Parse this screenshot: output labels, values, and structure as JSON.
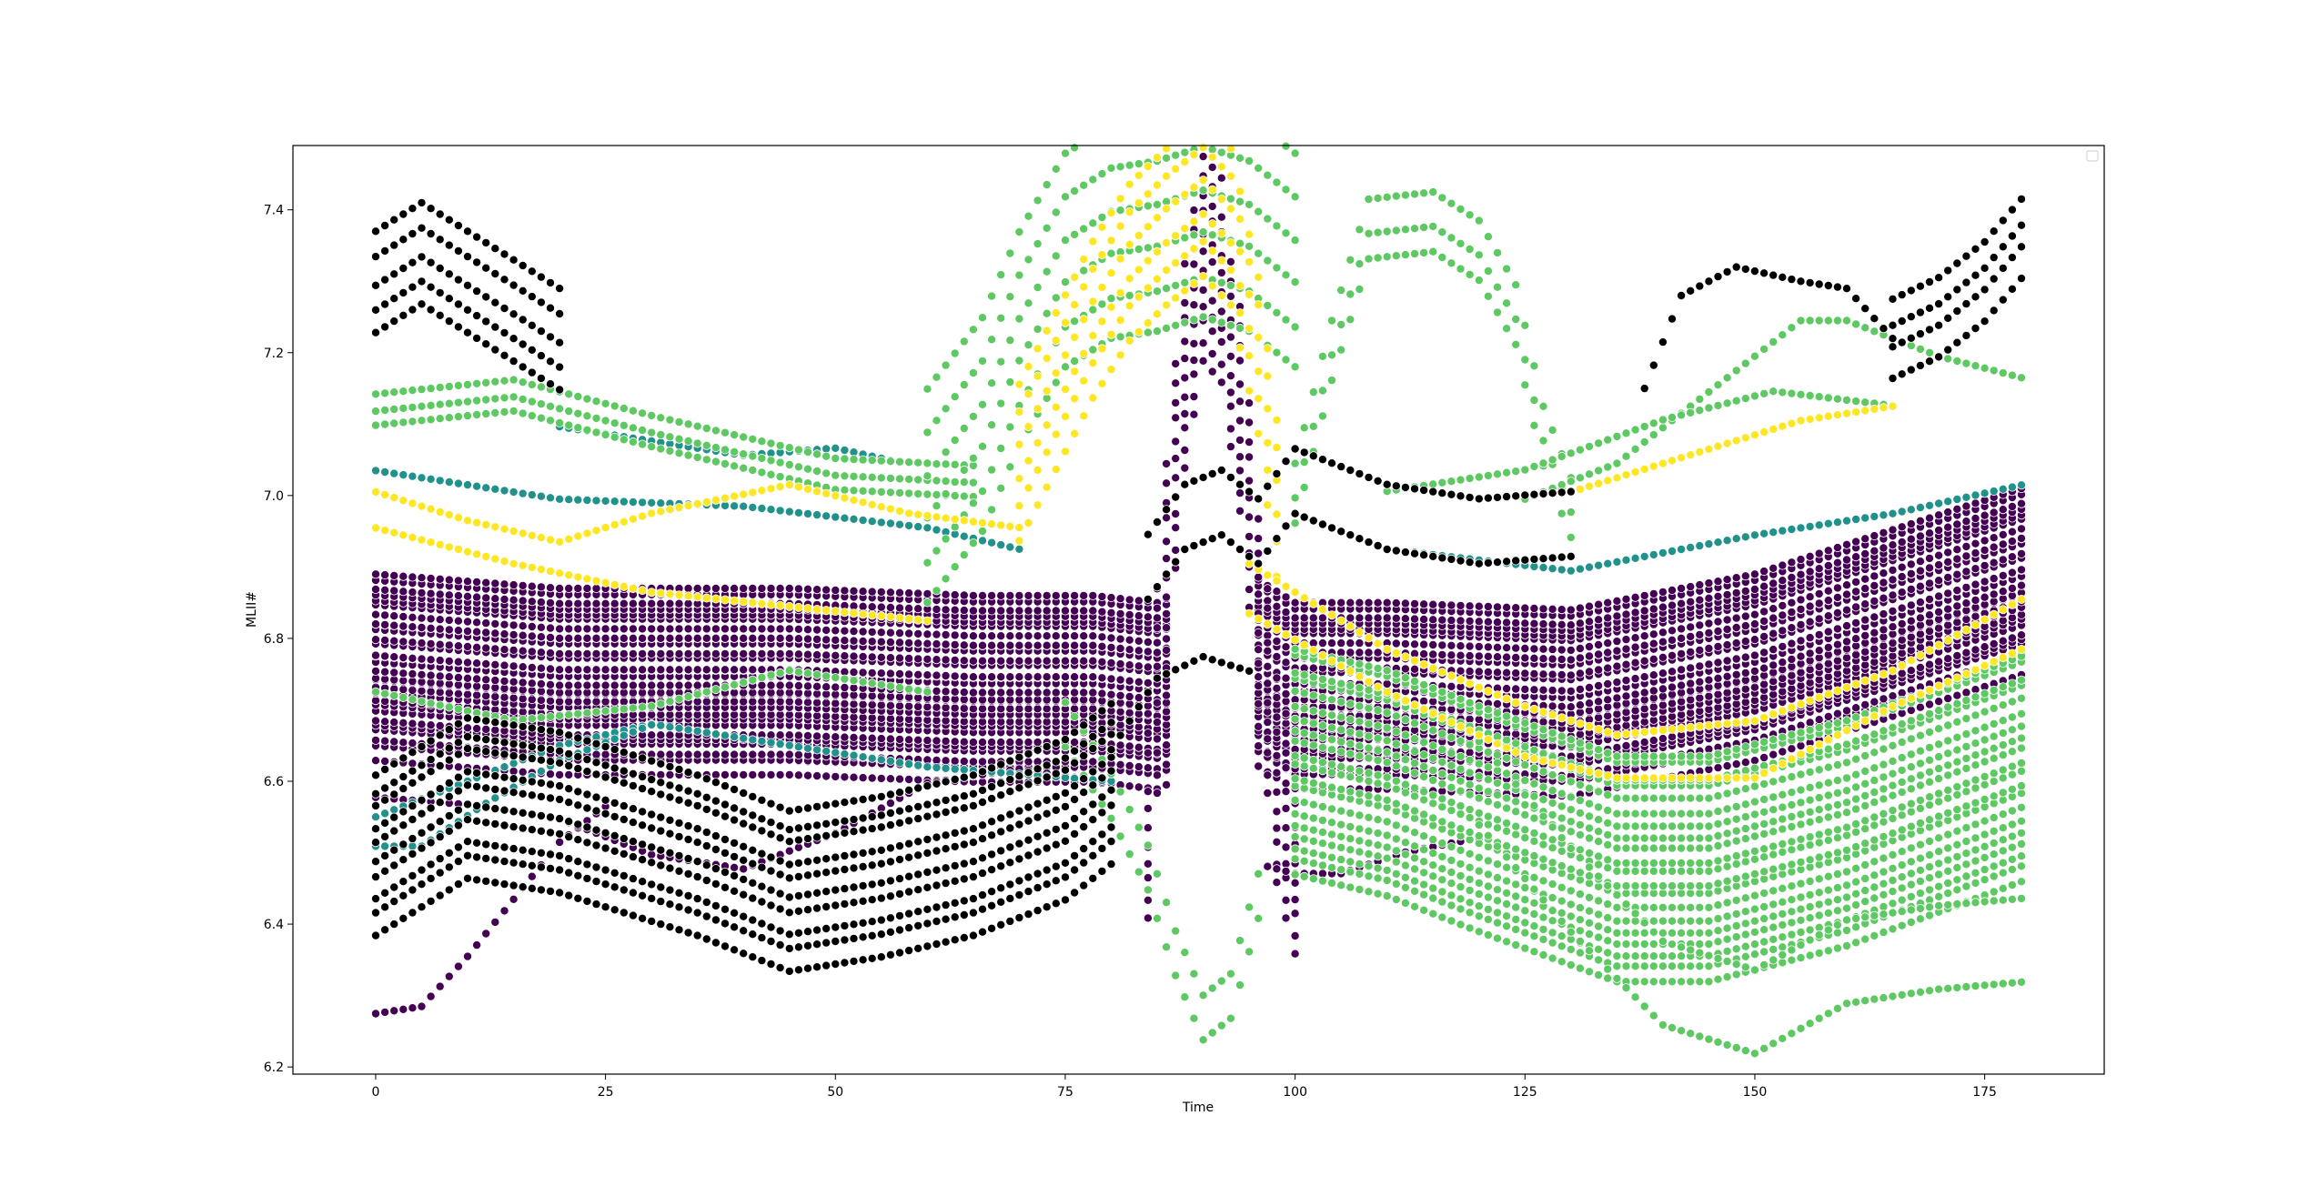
{
  "chart_data": {
    "type": "scatter",
    "title": "",
    "xlabel": "Time",
    "ylabel": "MLII#",
    "xlim": [
      -9,
      188
    ],
    "ylim": [
      6.19,
      7.49
    ],
    "x_ticks": [
      0,
      25,
      50,
      75,
      100,
      125,
      150,
      175
    ],
    "y_ticks": [
      6.2,
      6.4,
      6.6,
      6.8,
      7.0,
      7.2,
      7.4
    ],
    "grid": false,
    "legend": "empty box, top-right",
    "marker_edge_color": "#ffffff",
    "x_range": [
      0,
      179
    ],
    "series": [
      {
        "color": "#440154",
        "curves": [
          {
            "count": 30,
            "anchors": [
              [
                0,
                6.76
              ],
              [
                20,
                6.74
              ],
              [
                45,
                6.74
              ],
              [
                65,
                6.73
              ],
              [
                78,
                6.73
              ],
              [
                85,
                6.72
              ],
              [
                90,
                6.75
              ],
              [
                95,
                6.76
              ],
              [
                100,
                6.72
              ],
              [
                110,
                6.72
              ],
              [
                130,
                6.71
              ],
              [
                150,
                6.76
              ],
              [
                179,
                6.88
              ]
            ],
            "band": 0.25,
            "drop_left": 86,
            "drop_right": 96
          },
          {
            "count": 12,
            "anchors": [
              [
                84,
                6.55
              ],
              [
                86,
                6.9
              ],
              [
                88,
                7.18
              ],
              [
                90,
                7.33
              ],
              [
                92,
                7.3
              ],
              [
                94,
                7.12
              ],
              [
                96,
                6.85
              ],
              [
                98,
                6.6
              ],
              [
                100,
                6.5
              ]
            ],
            "band": 0.28
          },
          {
            "count": 1,
            "anchors": [
              [
                0,
                6.28
              ],
              [
                5,
                6.29
              ],
              [
                10,
                6.36
              ],
              [
                15,
                6.44
              ],
              [
                20,
                6.52
              ],
              [
                25,
                6.57
              ]
            ],
            "band": 0
          },
          {
            "count": 1,
            "anchors": [
              [
                0,
                6.58
              ],
              [
                10,
                6.57
              ],
              [
                20,
                6.55
              ],
              [
                30,
                6.5
              ],
              [
                40,
                6.48
              ],
              [
                50,
                6.53
              ],
              [
                60,
                6.6
              ],
              [
                70,
                6.62
              ],
              [
                80,
                6.6
              ]
            ],
            "band": 0
          },
          {
            "count": 1,
            "anchors": [
              [
                97,
                6.48
              ],
              [
                100,
                6.47
              ],
              [
                105,
                6.47
              ],
              [
                112,
                6.5
              ],
              [
                120,
                6.52
              ]
            ],
            "band": 0
          }
        ]
      },
      {
        "color": "#21918c",
        "curves": [
          {
            "count": 1,
            "anchors": [
              [
                0,
                6.55
              ],
              [
                10,
                6.6
              ],
              [
                20,
                6.65
              ],
              [
                30,
                6.68
              ],
              [
                40,
                6.66
              ],
              [
                60,
                6.62
              ],
              [
                80,
                6.6
              ]
            ],
            "band": 0
          },
          {
            "count": 1,
            "anchors": [
              [
                0,
                6.51
              ],
              [
                5,
                6.51
              ],
              [
                12,
                6.57
              ],
              [
                20,
                6.63
              ],
              [
                30,
                6.68
              ]
            ],
            "band": 0
          },
          {
            "count": 1,
            "anchors": [
              [
                20,
                7.1
              ],
              [
                30,
                7.08
              ],
              [
                40,
                7.06
              ],
              [
                50,
                7.07
              ],
              [
                57,
                7.05
              ]
            ],
            "band": 0
          },
          {
            "count": 1,
            "anchors": [
              [
                0,
                7.03
              ],
              [
                20,
                6.99
              ],
              [
                40,
                6.98
              ],
              [
                60,
                6.95
              ],
              [
                70,
                6.92
              ]
            ],
            "band": 0
          },
          {
            "count": 1,
            "anchors": [
              [
                110,
                6.93
              ],
              [
                130,
                6.9
              ],
              [
                150,
                6.95
              ],
              [
                165,
                6.98
              ],
              [
                179,
                7.02
              ]
            ],
            "band": 0
          }
        ]
      },
      {
        "color": "#5ec962",
        "curves": [
          {
            "count": 3,
            "anchors": [
              [
                0,
                7.12
              ],
              [
                15,
                7.14
              ],
              [
                30,
                7.09
              ],
              [
                50,
                7.03
              ],
              [
                65,
                7.02
              ]
            ],
            "band": 0.04
          },
          {
            "count": 1,
            "anchors": [
              [
                0,
                6.72
              ],
              [
                15,
                6.68
              ],
              [
                30,
                6.7
              ],
              [
                45,
                6.75
              ],
              [
                60,
                6.72
              ]
            ],
            "band": 0
          },
          {
            "count": 6,
            "anchors": [
              [
                60,
                7.0
              ],
              [
                66,
                7.1
              ],
              [
                70,
                7.22
              ],
              [
                75,
                7.33
              ],
              [
                80,
                7.37
              ],
              [
                85,
                7.38
              ],
              [
                90,
                7.4
              ],
              [
                95,
                7.38
              ],
              [
                100,
                7.33
              ]
            ],
            "band": 0.3
          },
          {
            "count": 2,
            "anchors": [
              [
                75,
                6.68
              ],
              [
                80,
                6.58
              ],
              [
                84,
                6.48
              ],
              [
                87,
                6.36
              ],
              [
                90,
                6.27
              ],
              [
                93,
                6.3
              ],
              [
                96,
                6.44
              ]
            ],
            "band": 0.06
          },
          {
            "count": 3,
            "anchors": [
              [
                100,
                7.0
              ],
              [
                104,
                7.2
              ],
              [
                108,
                7.37
              ],
              [
                115,
                7.38
              ],
              [
                120,
                7.34
              ],
              [
                124,
                7.25
              ],
              [
                127,
                7.08
              ],
              [
                130,
                6.98
              ]
            ],
            "band": 0.08
          },
          {
            "count": 20,
            "anchors": [
              [
                100,
                6.63
              ],
              [
                110,
                6.6
              ],
              [
                120,
                6.55
              ],
              [
                135,
                6.48
              ],
              [
                145,
                6.48
              ],
              [
                160,
                6.53
              ],
              [
                179,
                6.62
              ]
            ],
            "band": 0.32
          },
          {
            "count": 2,
            "anchors": [
              [
                120,
                6.6
              ],
              [
                130,
                6.45
              ],
              [
                140,
                6.32
              ],
              [
                150,
                6.28
              ],
              [
                160,
                6.35
              ],
              [
                170,
                6.37
              ],
              [
                179,
                6.38
              ]
            ],
            "band": 0.12
          },
          {
            "count": 1,
            "anchors": [
              [
                125,
                7.0
              ],
              [
                135,
                7.05
              ],
              [
                145,
                7.15
              ],
              [
                155,
                7.25
              ],
              [
                160,
                7.25
              ],
              [
                170,
                7.2
              ],
              [
                179,
                7.17
              ]
            ],
            "band": 0
          },
          {
            "count": 1,
            "anchors": [
              [
                110,
                7.0
              ],
              [
                125,
                7.03
              ],
              [
                140,
                7.1
              ],
              [
                152,
                7.14
              ],
              [
                165,
                7.12
              ]
            ],
            "band": 0
          }
        ]
      },
      {
        "color": "#fde725",
        "curves": [
          {
            "count": 6,
            "anchors": [
              [
                70,
                7.05
              ],
              [
                74,
                7.15
              ],
              [
                78,
                7.25
              ],
              [
                82,
                7.33
              ],
              [
                86,
                7.38
              ],
              [
                90,
                7.42
              ],
              [
                93,
                7.38
              ],
              [
                96,
                7.2
              ],
              [
                98,
                7.0
              ]
            ],
            "band": 0.22
          },
          {
            "count": 1,
            "anchors": [
              [
                0,
                7.0
              ],
              [
                10,
                6.96
              ],
              [
                20,
                6.93
              ],
              [
                30,
                6.97
              ],
              [
                45,
                7.01
              ],
              [
                58,
                6.97
              ],
              [
                70,
                6.95
              ]
            ],
            "band": 0
          },
          {
            "count": 1,
            "anchors": [
              [
                0,
                6.95
              ],
              [
                15,
                6.9
              ],
              [
                30,
                6.86
              ],
              [
                45,
                6.84
              ],
              [
                60,
                6.82
              ]
            ],
            "band": 0
          },
          {
            "count": 1,
            "anchors": [
              [
                95,
                6.9
              ],
              [
                110,
                6.78
              ],
              [
                125,
                6.7
              ],
              [
                135,
                6.66
              ],
              [
                150,
                6.68
              ],
              [
                165,
                6.75
              ],
              [
                179,
                6.85
              ]
            ],
            "band": 0
          },
          {
            "count": 1,
            "anchors": [
              [
                95,
                6.83
              ],
              [
                110,
                6.72
              ],
              [
                125,
                6.63
              ],
              [
                135,
                6.6
              ],
              [
                150,
                6.6
              ],
              [
                165,
                6.7
              ],
              [
                179,
                6.78
              ]
            ],
            "band": 0
          },
          {
            "count": 1,
            "anchors": [
              [
                130,
                7.0
              ],
              [
                145,
                7.06
              ],
              [
                155,
                7.1
              ],
              [
                165,
                7.12
              ]
            ],
            "band": 0
          }
        ]
      },
      {
        "color": "#000000",
        "curves": [
          {
            "count": 5,
            "anchors": [
              [
                0,
                7.3
              ],
              [
                5,
                7.34
              ],
              [
                10,
                7.3
              ],
              [
                15,
                7.26
              ],
              [
                20,
                7.22
              ]
            ],
            "band": 0.15
          },
          {
            "count": 10,
            "anchors": [
              [
                0,
                6.5
              ],
              [
                10,
                6.58
              ],
              [
                20,
                6.56
              ],
              [
                35,
                6.5
              ],
              [
                45,
                6.45
              ],
              [
                55,
                6.47
              ],
              [
                65,
                6.5
              ],
              [
                75,
                6.55
              ],
              [
                80,
                6.6
              ]
            ],
            "band": 0.22
          },
          {
            "count": 2,
            "anchors": [
              [
                84,
                6.9
              ],
              [
                88,
                6.97
              ],
              [
                92,
                6.99
              ],
              [
                96,
                6.95
              ],
              [
                100,
                7.02
              ],
              [
                110,
                6.97
              ],
              [
                120,
                6.95
              ],
              [
                130,
                6.96
              ]
            ],
            "band": 0.1
          },
          {
            "count": 1,
            "anchors": [
              [
                138,
                7.15
              ],
              [
                142,
                7.28
              ],
              [
                148,
                7.32
              ],
              [
                155,
                7.3
              ],
              [
                160,
                7.29
              ],
              [
                165,
                7.22
              ]
            ],
            "band": 0
          },
          {
            "count": 4,
            "anchors": [
              [
                165,
                7.22
              ],
              [
                170,
                7.25
              ],
              [
                175,
                7.3
              ],
              [
                179,
                7.36
              ]
            ],
            "band": 0.1
          },
          {
            "count": 1,
            "anchors": [
              [
                80,
                6.65
              ],
              [
                85,
                6.75
              ],
              [
                90,
                6.78
              ],
              [
                95,
                6.76
              ]
            ],
            "band": 0
          }
        ]
      }
    ]
  }
}
